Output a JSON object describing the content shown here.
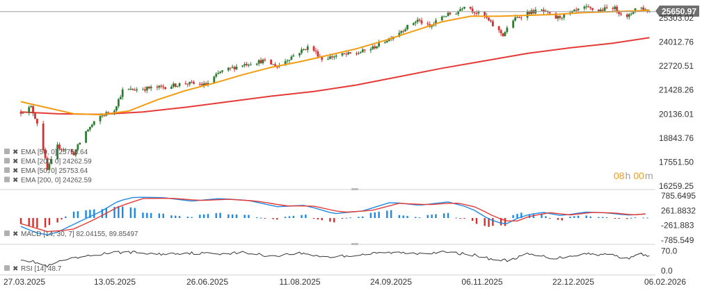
{
  "chart_data": {
    "type": "candlestick",
    "last_price": "25650.97",
    "current_price_value": 25650.97,
    "countdown": {
      "hours": "08",
      "h_unit": "h",
      "minutes": "00",
      "m_unit": "m"
    },
    "colors": {
      "up": "#2e7d32",
      "down": "#d32f2f",
      "ema50": "#f39c12",
      "ema200": "#e53935",
      "macd": "#1e88e5",
      "signal": "#e53935",
      "rsi": "#333333",
      "price_tag": "#6f6f6f",
      "countdown": "#f39c12"
    },
    "price_axis": {
      "ticks": [
        "16259.25",
        "17551.50",
        "18843.76",
        "20136.01",
        "21428.26",
        "22720.51",
        "24012.76",
        "25303.02"
      ],
      "tick_values": [
        16259.25,
        17551.5,
        18843.76,
        20136.01,
        21428.26,
        22720.51,
        24012.76,
        25303.02
      ],
      "range": [
        16259.25,
        25900
      ]
    },
    "date_axis": {
      "labels": [
        "27.03.2025",
        "13.05.2025",
        "26.06.2025",
        "11.08.2025",
        "24.09.2025",
        "06.11.2025",
        "22.12.2025",
        "06.02.2026"
      ],
      "range": [
        "2025-03-27",
        "2026-02-06"
      ]
    },
    "overlays": [
      {
        "label": "EMA [50, 0] 25753.64",
        "name": "EMA",
        "params": "[50,  0]",
        "value": "25753.64"
      },
      {
        "label": "EMA [200, 0] 24262.59",
        "name": "EMA",
        "params": "[200,  0]",
        "value": "24262.59"
      },
      {
        "label": "EMA [50, 0] 25753.64",
        "name": "EMA",
        "params": "[50,  0]",
        "value": "25753.64"
      },
      {
        "label": "EMA [200, 0] 24262.59",
        "name": "EMA",
        "params": "[200,  0]",
        "value": "24262.59"
      }
    ],
    "ema50_points": [
      [
        "2025-03-27",
        20800
      ],
      [
        "2025-04-08",
        20500
      ],
      [
        "2025-04-22",
        20150
      ],
      [
        "2025-05-05",
        20100
      ],
      [
        "2025-05-19",
        20300
      ],
      [
        "2025-06-02",
        20900
      ],
      [
        "2025-06-16",
        21400
      ],
      [
        "2025-06-30",
        21800
      ],
      [
        "2025-07-14",
        22250
      ],
      [
        "2025-07-28",
        22650
      ],
      [
        "2025-08-11",
        22950
      ],
      [
        "2025-08-25",
        23300
      ],
      [
        "2025-09-08",
        23650
      ],
      [
        "2025-09-22",
        24100
      ],
      [
        "2025-10-06",
        24600
      ],
      [
        "2025-10-20",
        25100
      ],
      [
        "2025-11-03",
        25400
      ],
      [
        "2025-11-17",
        25400
      ],
      [
        "2025-12-01",
        25450
      ],
      [
        "2025-12-15",
        25500
      ],
      [
        "2025-12-29",
        25600
      ],
      [
        "2026-01-12",
        25650
      ],
      [
        "2026-01-26",
        25700
      ],
      [
        "2026-01-30",
        25720
      ]
    ],
    "ema200_points": [
      [
        "2025-03-27",
        20250
      ],
      [
        "2025-04-14",
        20150
      ],
      [
        "2025-05-05",
        20120
      ],
      [
        "2025-05-26",
        20250
      ],
      [
        "2025-06-16",
        20500
      ],
      [
        "2025-07-07",
        20800
      ],
      [
        "2025-07-28",
        21100
      ],
      [
        "2025-08-18",
        21350
      ],
      [
        "2025-09-08",
        21700
      ],
      [
        "2025-09-29",
        22150
      ],
      [
        "2025-10-20",
        22600
      ],
      [
        "2025-11-10",
        23000
      ],
      [
        "2025-12-01",
        23400
      ],
      [
        "2025-12-22",
        23700
      ],
      [
        "2026-01-12",
        23950
      ],
      [
        "2026-01-30",
        24250
      ]
    ],
    "price_anchors": [
      [
        "2025-03-27",
        20250
      ],
      [
        "2025-04-01",
        20500
      ],
      [
        "2025-04-05",
        19400
      ],
      [
        "2025-04-09",
        17100
      ],
      [
        "2025-04-14",
        18400
      ],
      [
        "2025-04-22",
        18000
      ],
      [
        "2025-04-28",
        19200
      ],
      [
        "2025-05-05",
        20000
      ],
      [
        "2025-05-12",
        20400
      ],
      [
        "2025-05-16",
        21400
      ],
      [
        "2025-05-26",
        21500
      ],
      [
        "2025-06-06",
        21600
      ],
      [
        "2025-06-16",
        21800
      ],
      [
        "2025-06-26",
        21700
      ],
      [
        "2025-07-03",
        22400
      ],
      [
        "2025-07-14",
        22800
      ],
      [
        "2025-07-24",
        23000
      ],
      [
        "2025-07-31",
        22700
      ],
      [
        "2025-08-08",
        23300
      ],
      [
        "2025-08-16",
        23800
      ],
      [
        "2025-08-22",
        23100
      ],
      [
        "2025-08-30",
        23300
      ],
      [
        "2025-09-08",
        23400
      ],
      [
        "2025-09-16",
        23700
      ],
      [
        "2025-09-24",
        24200
      ],
      [
        "2025-10-01",
        24700
      ],
      [
        "2025-10-08",
        25200
      ],
      [
        "2025-10-14",
        24800
      ],
      [
        "2025-10-20",
        25400
      ],
      [
        "2025-10-27",
        25600
      ],
      [
        "2025-11-01",
        26100
      ],
      [
        "2025-11-04",
        25700
      ],
      [
        "2025-11-10",
        25400
      ],
      [
        "2025-11-14",
        24900
      ],
      [
        "2025-11-19",
        24400
      ],
      [
        "2025-11-24",
        25200
      ],
      [
        "2025-12-01",
        25600
      ],
      [
        "2025-12-08",
        25700
      ],
      [
        "2025-12-15",
        25300
      ],
      [
        "2025-12-22",
        25550
      ],
      [
        "2025-12-29",
        25850
      ],
      [
        "2026-01-05",
        25700
      ],
      [
        "2026-01-12",
        25900
      ],
      [
        "2026-01-19",
        25300
      ],
      [
        "2026-01-24",
        25950
      ],
      [
        "2026-01-30",
        25650
      ]
    ],
    "macd": {
      "label": "MACD [14, 30, 7] 82.04155, 89.85497",
      "name": "MACD",
      "params": "[14,  30,  7]",
      "values": "82.04155,  89.85497",
      "ticks": [
        "785.6495",
        "261.8832",
        "-261.883",
        "-785.549"
      ],
      "tick_values": [
        785.6495,
        261.8832,
        -261.883,
        -785.549
      ],
      "macd_anchors": [
        [
          "2025-03-27",
          -300
        ],
        [
          "2025-04-07",
          -620
        ],
        [
          "2025-04-14",
          -500
        ],
        [
          "2025-04-25",
          -120
        ],
        [
          "2025-05-05",
          220
        ],
        [
          "2025-05-14",
          600
        ],
        [
          "2025-05-22",
          740
        ],
        [
          "2025-06-05",
          720
        ],
        [
          "2025-06-19",
          600
        ],
        [
          "2025-07-03",
          690
        ],
        [
          "2025-07-17",
          620
        ],
        [
          "2025-07-31",
          400
        ],
        [
          "2025-08-14",
          450
        ],
        [
          "2025-08-28",
          150
        ],
        [
          "2025-09-11",
          250
        ],
        [
          "2025-09-25",
          560
        ],
        [
          "2025-10-09",
          450
        ],
        [
          "2025-10-23",
          570
        ],
        [
          "2025-11-03",
          360
        ],
        [
          "2025-11-12",
          -40
        ],
        [
          "2025-11-20",
          -230
        ],
        [
          "2025-11-28",
          60
        ],
        [
          "2025-12-08",
          210
        ],
        [
          "2025-12-18",
          80
        ],
        [
          "2025-12-29",
          210
        ],
        [
          "2026-01-08",
          190
        ],
        [
          "2026-01-19",
          100
        ],
        [
          "2026-01-30",
          150
        ]
      ],
      "signal_anchors": [
        [
          "2025-03-27",
          -200
        ],
        [
          "2025-04-09",
          -480
        ],
        [
          "2025-04-21",
          -420
        ],
        [
          "2025-05-02",
          -60
        ],
        [
          "2025-05-14",
          400
        ],
        [
          "2025-05-26",
          690
        ],
        [
          "2025-06-09",
          700
        ],
        [
          "2025-06-23",
          620
        ],
        [
          "2025-07-07",
          660
        ],
        [
          "2025-07-21",
          600
        ],
        [
          "2025-08-04",
          430
        ],
        [
          "2025-08-18",
          420
        ],
        [
          "2025-09-01",
          200
        ],
        [
          "2025-09-15",
          260
        ],
        [
          "2025-09-29",
          520
        ],
        [
          "2025-10-13",
          470
        ],
        [
          "2025-10-27",
          540
        ],
        [
          "2025-11-06",
          380
        ],
        [
          "2025-11-16",
          0
        ],
        [
          "2025-11-24",
          -160
        ],
        [
          "2025-12-02",
          60
        ],
        [
          "2025-12-12",
          190
        ],
        [
          "2025-12-22",
          110
        ],
        [
          "2026-01-02",
          200
        ],
        [
          "2026-01-12",
          180
        ],
        [
          "2026-01-22",
          110
        ],
        [
          "2026-01-30",
          160
        ]
      ]
    },
    "rsi": {
      "label": "RSI [14] 48.7",
      "name": "RSI",
      "params": "[14]",
      "value": "48.7",
      "ticks": [
        "70.0",
        "0.0"
      ],
      "tick_values": [
        70,
        0
      ],
      "anchors": [
        [
          "2025-03-27",
          42
        ],
        [
          "2025-04-03",
          30
        ],
        [
          "2025-04-09",
          15
        ],
        [
          "2025-04-16",
          35
        ],
        [
          "2025-04-28",
          50
        ],
        [
          "2025-05-08",
          62
        ],
        [
          "2025-05-19",
          66
        ],
        [
          "2025-06-02",
          58
        ],
        [
          "2025-06-16",
          63
        ],
        [
          "2025-06-30",
          60
        ],
        [
          "2025-07-14",
          64
        ],
        [
          "2025-07-28",
          52
        ],
        [
          "2025-08-11",
          62
        ],
        [
          "2025-08-25",
          48
        ],
        [
          "2025-09-08",
          55
        ],
        [
          "2025-09-22",
          64
        ],
        [
          "2025-10-06",
          62
        ],
        [
          "2025-10-20",
          65
        ],
        [
          "2025-11-03",
          58
        ],
        [
          "2025-11-14",
          40
        ],
        [
          "2025-11-21",
          36
        ],
        [
          "2025-12-01",
          58
        ],
        [
          "2025-12-15",
          44
        ],
        [
          "2025-12-29",
          60
        ],
        [
          "2026-01-12",
          56
        ],
        [
          "2026-01-19",
          42
        ],
        [
          "2026-01-24",
          62
        ],
        [
          "2026-01-30",
          48.7
        ]
      ]
    }
  }
}
